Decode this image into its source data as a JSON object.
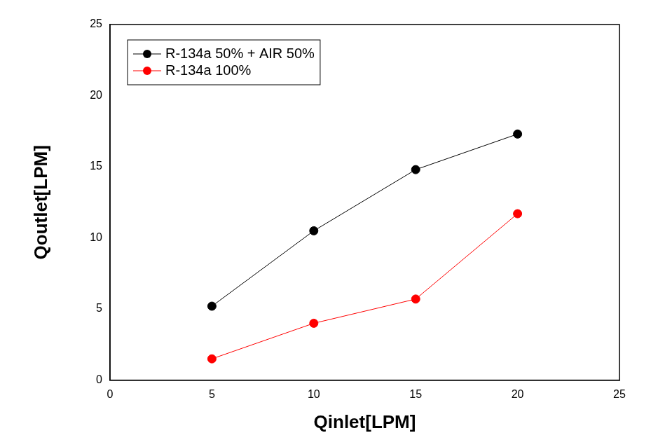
{
  "chart_data": {
    "type": "line",
    "x_label": "Qinlet[LPM]",
    "y_label": "Qoutlet[LPM]",
    "xlim": [
      0,
      25
    ],
    "xticks": [
      0,
      5,
      10,
      15,
      20,
      25
    ],
    "ylim": [
      0,
      25
    ],
    "yticks": [
      0,
      5,
      10,
      15,
      20,
      25
    ],
    "x": [
      5,
      10,
      15,
      20
    ],
    "series": [
      {
        "name": "R-134a 50% + AIR 50%",
        "color": "#000000",
        "marker": "circle",
        "line_style": "solid",
        "values": [
          5.2,
          10.5,
          14.8,
          17.3
        ]
      },
      {
        "name": "R-134a 100%",
        "color": "#ff0000",
        "marker": "circle",
        "line_style": "solid",
        "values": [
          1.5,
          4.0,
          5.7,
          11.7
        ]
      }
    ],
    "grid": false,
    "legend": "upper left"
  }
}
